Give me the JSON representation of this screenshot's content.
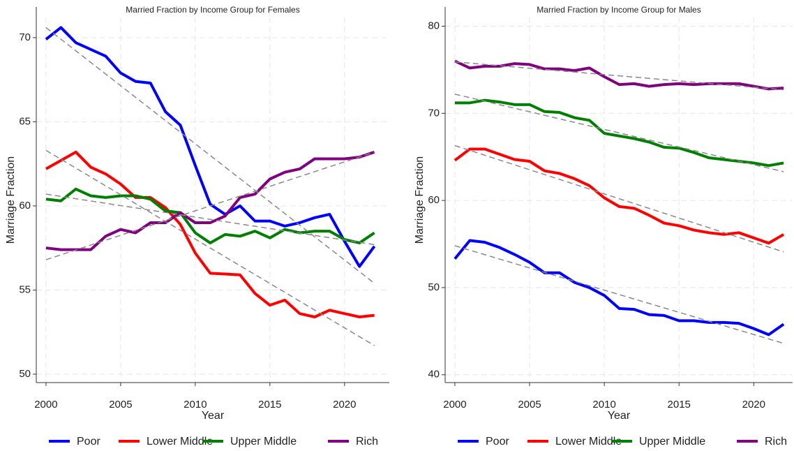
{
  "chart_data": [
    {
      "type": "line",
      "title": "Married Fraction by Income Group for Females",
      "x_label": "Year",
      "y_label": "Marriage Fraction",
      "x": [
        2000,
        2001,
        2002,
        2003,
        2004,
        2005,
        2006,
        2007,
        2008,
        2009,
        2010,
        2011,
        2012,
        2013,
        2014,
        2015,
        2016,
        2017,
        2018,
        2019,
        2020,
        2021,
        2022
      ],
      "xlim": [
        1999.35,
        2023
      ],
      "xticks": [
        2000,
        2005,
        2010,
        2015,
        2020
      ],
      "ylim": [
        49.5,
        71.2
      ],
      "yticks": [
        50,
        55,
        60,
        65,
        70
      ],
      "grid": true,
      "legend": "bottom",
      "series": [
        {
          "name": "Poor",
          "color": "#0000ff",
          "values": [
            69.9,
            70.6,
            69.7,
            69.3,
            68.9,
            67.9,
            67.4,
            67.3,
            65.6,
            64.8,
            62.4,
            60.1,
            59.5,
            60.0,
            59.1,
            59.1,
            58.8,
            59.0,
            59.3,
            59.5,
            57.9,
            56.4,
            57.6
          ],
          "trend": [
            70.6,
            55.4
          ]
        },
        {
          "name": "Lower Middle",
          "color": "#ff0000",
          "values": [
            62.2,
            62.7,
            63.2,
            62.3,
            61.9,
            61.3,
            60.5,
            60.5,
            59.9,
            58.9,
            57.2,
            56.0,
            55.95,
            55.9,
            54.8,
            54.1,
            54.4,
            53.6,
            53.4,
            53.8,
            53.6,
            53.4,
            53.5
          ],
          "trend": [
            63.3,
            51.7
          ]
        },
        {
          "name": "Upper Middle",
          "color": "#008000",
          "values": [
            60.4,
            60.3,
            61.0,
            60.6,
            60.5,
            60.6,
            60.6,
            60.4,
            59.7,
            59.6,
            58.4,
            57.8,
            58.3,
            58.2,
            58.5,
            58.1,
            58.6,
            58.4,
            58.5,
            58.5,
            58.0,
            57.8,
            58.4
          ],
          "trend": [
            60.7,
            57.7
          ]
        },
        {
          "name": "Rich",
          "color": "#800080",
          "values": [
            57.5,
            57.4,
            57.4,
            57.4,
            58.2,
            58.6,
            58.4,
            59.0,
            59.0,
            59.6,
            59.0,
            59.0,
            59.4,
            60.5,
            60.7,
            61.6,
            62.0,
            62.2,
            62.8,
            62.8,
            62.8,
            62.9,
            63.2
          ],
          "trend": [
            56.8,
            63.2
          ]
        }
      ]
    },
    {
      "type": "line",
      "title": "Married Fraction by Income Group for Males",
      "x_label": "Year",
      "y_label": "Marriage Fraction",
      "x": [
        2000,
        2001,
        2002,
        2003,
        2004,
        2005,
        2006,
        2007,
        2008,
        2009,
        2010,
        2011,
        2012,
        2013,
        2014,
        2015,
        2016,
        2017,
        2018,
        2019,
        2020,
        2021,
        2022
      ],
      "xlim": [
        1999.35,
        2022.6
      ],
      "xticks": [
        2000,
        2005,
        2010,
        2015,
        2020
      ],
      "ylim": [
        39.1,
        81
      ],
      "yticks": [
        40,
        50,
        60,
        70,
        80
      ],
      "grid": true,
      "legend": "bottom",
      "series": [
        {
          "name": "Poor",
          "color": "#0000ff",
          "values": [
            53.3,
            55.4,
            55.2,
            54.6,
            53.8,
            52.9,
            51.7,
            51.7,
            50.6,
            50.0,
            49.1,
            47.6,
            47.5,
            46.9,
            46.8,
            46.2,
            46.2,
            46.0,
            46.0,
            45.9,
            45.3,
            44.6,
            45.8
          ],
          "trend": [
            54.8,
            43.6
          ]
        },
        {
          "name": "Lower Middle",
          "color": "#ff0000",
          "values": [
            64.6,
            65.9,
            65.9,
            65.3,
            64.7,
            64.5,
            63.4,
            63.1,
            62.5,
            61.7,
            60.3,
            59.3,
            59.1,
            58.3,
            57.4,
            57.1,
            56.6,
            56.3,
            56.1,
            56.3,
            55.7,
            55.1,
            56.1
          ],
          "trend": [
            66.3,
            54.1
          ]
        },
        {
          "name": "Upper Middle",
          "color": "#008000",
          "values": [
            71.2,
            71.2,
            71.5,
            71.3,
            71.0,
            71.0,
            70.2,
            70.1,
            69.5,
            69.2,
            67.7,
            67.4,
            67.1,
            66.7,
            66.1,
            66.0,
            65.5,
            64.9,
            64.7,
            64.5,
            64.3,
            64.0,
            64.3
          ],
          "trend": [
            72.2,
            63.3
          ]
        },
        {
          "name": "Rich",
          "color": "#800080",
          "values": [
            76.0,
            75.2,
            75.4,
            75.4,
            75.7,
            75.6,
            75.1,
            75.1,
            74.9,
            75.2,
            74.2,
            73.3,
            73.4,
            73.1,
            73.3,
            73.4,
            73.3,
            73.4,
            73.4,
            73.4,
            73.1,
            72.8,
            72.9
          ],
          "trend": [
            75.9,
            72.7
          ]
        }
      ]
    }
  ]
}
